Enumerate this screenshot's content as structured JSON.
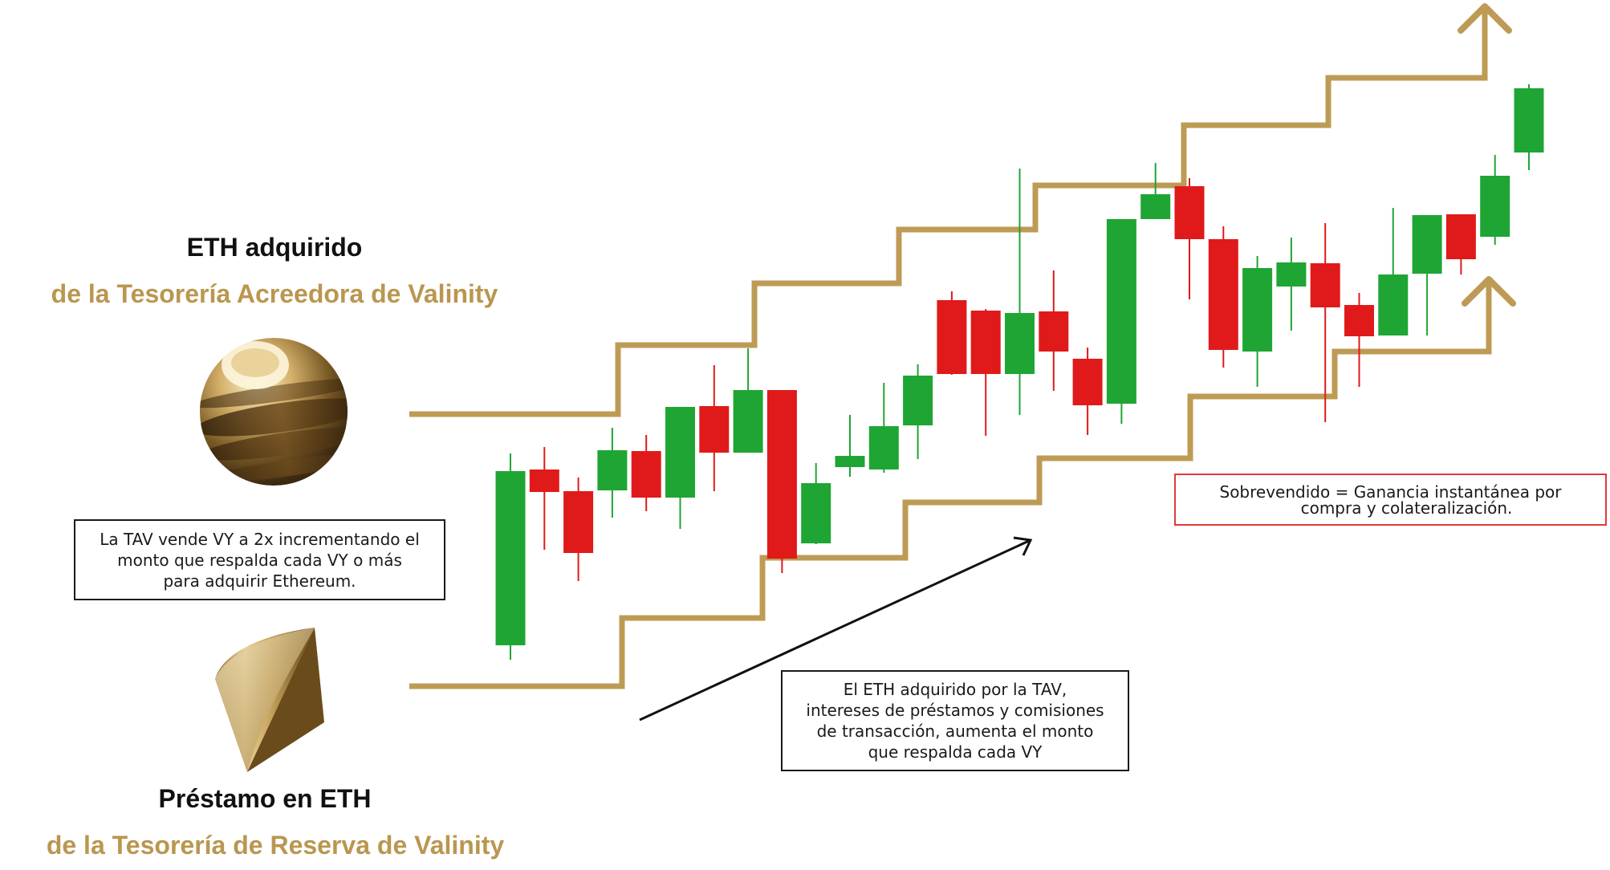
{
  "colors": {
    "gold": "#BE9B55",
    "gold_text": "#BA9650",
    "candle_up": "#1FA533",
    "candle_down": "#E01A1A",
    "box_border_dark": "#1a1a1a",
    "box_border_red": "#E03A3A"
  },
  "top_asset": {
    "title": "ETH adquirido",
    "subtitle": "de la Tesorería Acreedora de Valinity",
    "icon": "gold-striped-sphere-icon"
  },
  "bottom_asset": {
    "title": "Préstamo en ETH",
    "subtitle": "de la Tesorería de Reserva de Valinity",
    "icon": "gold-cone-icon"
  },
  "notes": {
    "tav_sells": [
      "La TAV vende VY a 2x incrementando el",
      "monto que respalda cada VY o más",
      "para adquirir Ethereum."
    ],
    "eth_acquired": [
      "El ETH adquirido por la TAV,",
      "intereses de préstamos y comisiones",
      "de transacción, aumenta el monto",
      "que respalda cada VY"
    ],
    "oversold": [
      "Sobrevendido = Ganancia instantánea por",
      "compra y colateralización."
    ]
  },
  "candles": [
    {
      "dir": "up",
      "open": 18,
      "close": 235,
      "high": 257,
      "low": 0
    },
    {
      "dir": "down",
      "open": 237,
      "close": 209,
      "high": 265,
      "low": 137
    },
    {
      "dir": "down",
      "open": 210,
      "close": 133,
      "high": 227,
      "low": 98
    },
    {
      "dir": "up",
      "open": 211,
      "close": 261,
      "high": 289,
      "low": 177
    },
    {
      "dir": "down",
      "open": 260,
      "close": 202,
      "high": 280,
      "low": 185
    },
    {
      "dir": "up",
      "open": 202,
      "close": 315,
      "high": 315,
      "low": 163
    },
    {
      "dir": "down",
      "open": 316,
      "close": 258,
      "high": 367,
      "low": 210
    },
    {
      "dir": "up",
      "open": 258,
      "close": 336,
      "high": 388,
      "low": 258
    },
    {
      "dir": "down",
      "open": 336,
      "close": 126,
      "high": 336,
      "low": 108
    },
    {
      "dir": "up",
      "open": 145,
      "close": 220,
      "high": 245,
      "low": 144
    },
    {
      "dir": "up",
      "open": 240,
      "close": 254,
      "high": 305,
      "low": 228
    },
    {
      "dir": "up",
      "open": 237,
      "close": 291,
      "high": 345,
      "low": 233
    },
    {
      "dir": "up",
      "open": 292,
      "close": 354,
      "high": 368,
      "low": 250
    },
    {
      "dir": "down",
      "open": 448,
      "close": 356,
      "high": 459,
      "low": 355
    },
    {
      "dir": "down",
      "open": 435,
      "close": 356,
      "high": 437,
      "low": 279
    },
    {
      "dir": "up",
      "open": 356,
      "close": 432,
      "high": 612,
      "low": 305
    },
    {
      "dir": "down",
      "open": 434,
      "close": 384,
      "high": 485,
      "low": 335
    },
    {
      "dir": "down",
      "open": 375,
      "close": 317,
      "high": 389,
      "low": 280
    },
    {
      "dir": "up",
      "open": 319,
      "close": 549,
      "high": 549,
      "low": 294
    },
    {
      "dir": "up",
      "open": 549,
      "close": 580,
      "high": 619,
      "low": 549
    },
    {
      "dir": "down",
      "open": 590,
      "close": 524,
      "high": 600,
      "low": 449
    },
    {
      "dir": "down",
      "open": 524,
      "close": 386,
      "high": 540,
      "low": 364
    },
    {
      "dir": "up",
      "open": 384,
      "close": 488,
      "high": 503,
      "low": 340
    },
    {
      "dir": "up",
      "open": 465,
      "close": 495,
      "high": 526,
      "low": 410
    },
    {
      "dir": "down",
      "open": 494,
      "close": 439,
      "high": 544,
      "low": 296
    },
    {
      "dir": "down",
      "open": 442,
      "close": 403,
      "high": 457,
      "low": 340
    },
    {
      "dir": "up",
      "open": 404,
      "close": 480,
      "high": 563,
      "low": 404
    },
    {
      "dir": "up",
      "open": 481,
      "close": 554,
      "high": 554,
      "low": 404
    },
    {
      "dir": "down",
      "open": 555,
      "close": 499,
      "high": 555,
      "low": 480
    },
    {
      "dir": "up",
      "open": 527,
      "close": 603,
      "high": 629,
      "low": 517
    },
    {
      "dir": "up",
      "open": 632,
      "close": 712,
      "high": 717,
      "low": 610
    }
  ]
}
